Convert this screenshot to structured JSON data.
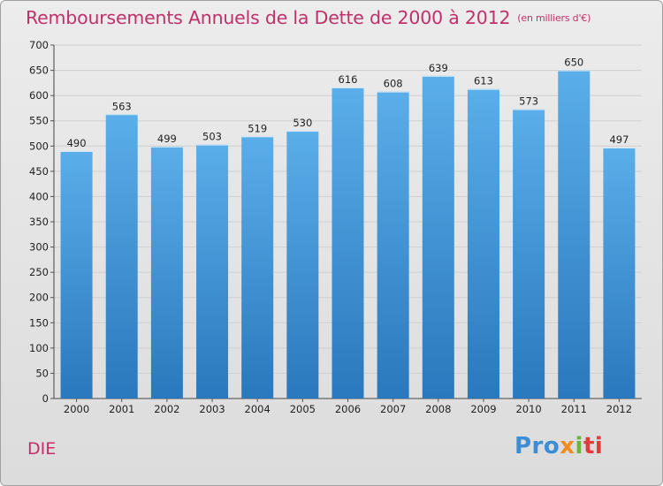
{
  "title": "Remboursements Annuels de la Dette de 2000 à 2012",
  "unit_note": "(en milliers d'€)",
  "commune": "DIE",
  "logo": {
    "p1": "Pro",
    "p2": "x",
    "p3": "i",
    "p4": "ti"
  },
  "colors": {
    "bar_top": "#5aaee9",
    "bar_bottom": "#2a78bd",
    "title": "#c0306a",
    "background": "#e3e3e3"
  },
  "chart_data": {
    "type": "bar",
    "title": "Remboursements Annuels de la Dette de 2000 à 2012",
    "xlabel": "",
    "ylabel": "",
    "categories": [
      "2000",
      "2001",
      "2002",
      "2003",
      "2004",
      "2005",
      "2006",
      "2007",
      "2008",
      "2009",
      "2010",
      "2011",
      "2012"
    ],
    "values": [
      490,
      563,
      499,
      503,
      519,
      530,
      616,
      608,
      639,
      613,
      573,
      650,
      497
    ],
    "ylim": [
      0,
      700
    ],
    "yticks": [
      0,
      50,
      100,
      150,
      200,
      250,
      300,
      350,
      400,
      450,
      500,
      550,
      600,
      650,
      700
    ],
    "grid": true,
    "legend": "none"
  }
}
